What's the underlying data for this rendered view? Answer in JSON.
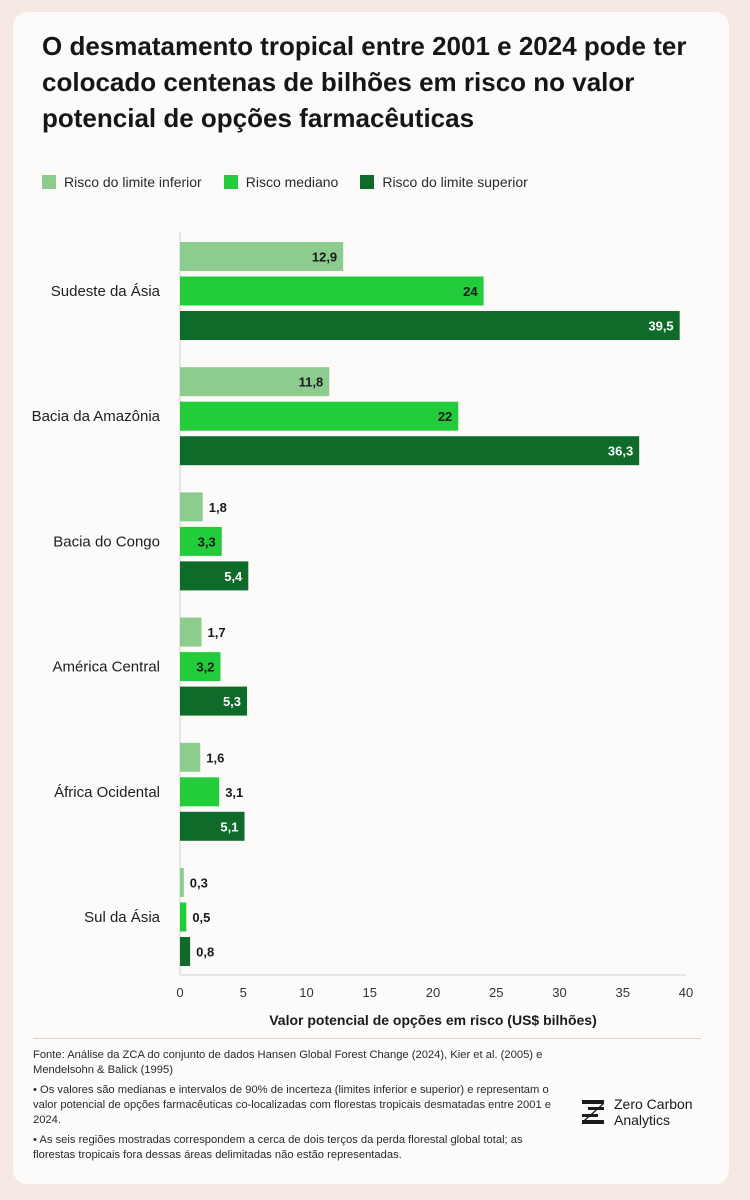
{
  "title": "O desmatamento tropical entre 2001 e 2024 pode ter colocado centenas de bilhões em risco no valor potencial de opções farmacêuticas",
  "colors": {
    "lower": "#8ccc8f",
    "median": "#22cc3a",
    "upper": "#0e6b2a"
  },
  "chart_data": {
    "type": "bar",
    "orientation": "horizontal",
    "categories": [
      "Sudeste da Ásia",
      "Bacia da Amazônia",
      "Bacia do Congo",
      "América Central",
      "África Ocidental",
      "Sul da Ásia"
    ],
    "series": [
      {
        "name": "Risco do limite inferior",
        "values": [
          12.9,
          11.8,
          1.8,
          1.7,
          1.6,
          0.3
        ],
        "labels": [
          "12,9",
          "11,8",
          "1,8",
          "1,7",
          "1,6",
          "0,3"
        ],
        "color": "#8ccc8f"
      },
      {
        "name": "Risco mediano",
        "values": [
          24,
          22,
          3.3,
          3.2,
          3.1,
          0.5
        ],
        "labels": [
          "24",
          "22",
          "3,3",
          "3,2",
          "3,1",
          "0,5"
        ],
        "color": "#22cc3a"
      },
      {
        "name": "Risco do limite superior",
        "values": [
          39.5,
          36.3,
          5.4,
          5.3,
          5.1,
          0.8
        ],
        "labels": [
          "39,5",
          "36,3",
          "5,4",
          "5,3",
          "5,1",
          "0,8"
        ],
        "color": "#0e6b2a"
      }
    ],
    "xlabel": "Valor potencial de opções em risco (US$ bilhões)",
    "xlim": [
      0,
      40
    ],
    "xticks": [
      0,
      5,
      10,
      15,
      20,
      25,
      30,
      35,
      40
    ],
    "legend_position": "top-left",
    "grid": false
  },
  "footer": {
    "source": "Fonte: Análise da ZCA do conjunto de dados Hansen Global Forest Change (2024), Kier et al. (2005) e Mendelsohn & Balick (1995)",
    "note1": "• Os valores são medianas e intervalos de 90% de incerteza (limites inferior e superior) e representam o valor potencial de opções farmacêuticas co-localizadas com florestas tropicais desmatadas entre 2001 e 2024.",
    "note2": "• As seis regiões mostradas correspondem a cerca de dois terços da perda florestal global total; as florestas tropicais fora dessas áreas delimitadas não estão representadas."
  },
  "logo": {
    "line1": "Zero Carbon",
    "line2": "Analytics",
    "icon": "zca-logo-icon"
  }
}
